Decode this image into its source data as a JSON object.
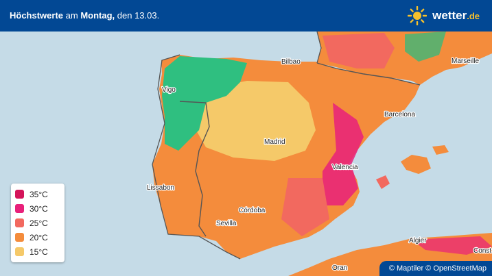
{
  "header": {
    "title_parts": [
      "Höchstwerte",
      " am ",
      "Montag,",
      " den 13.03."
    ],
    "logo": {
      "name": "wetter",
      "tld": ".de"
    }
  },
  "map": {
    "cities": [
      "Bilbao",
      "Marseille",
      "Vigo",
      "Barcelona",
      "Madrid",
      "Valencia",
      "Lissabon",
      "Córdoba",
      "Sevilla",
      "Algier",
      "Oran",
      "Const"
    ]
  },
  "legend": {
    "items": [
      {
        "label": "35°C",
        "color": "#d4145a"
      },
      {
        "label": "30°C",
        "color": "#e8207a"
      },
      {
        "label": "25°C",
        "color": "#f2695f"
      },
      {
        "label": "20°C",
        "color": "#f48c3c"
      },
      {
        "label": "15°C",
        "color": "#f5c969"
      }
    ]
  },
  "attribution": "© Maptiler © OpenStreetMap"
}
